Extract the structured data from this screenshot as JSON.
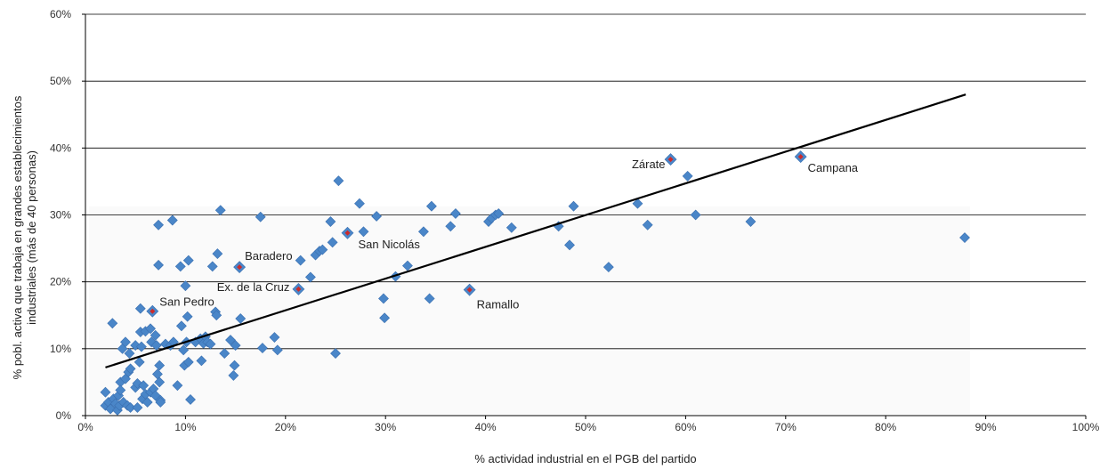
{
  "chart_data": {
    "type": "scatter",
    "xlabel": "% actividad industrial en el PGB del partido",
    "ylabel_line1": "% pobl. activa que trabaja en grandes establecimientos",
    "ylabel_line2": "industriales (más de 40 personas)",
    "xlim": [
      0,
      100
    ],
    "ylim": [
      0,
      60
    ],
    "x_ticks": [
      "0%",
      "10%",
      "20%",
      "30%",
      "40%",
      "50%",
      "60%",
      "70%",
      "80%",
      "90%",
      "100%"
    ],
    "y_ticks": [
      "0%",
      "10%",
      "20%",
      "30%",
      "40%",
      "50%",
      "60%"
    ],
    "grid": "horizontal",
    "colors": {
      "point": "#4a86c8",
      "highlight_core": "#cc2a2a",
      "trend": "#000000",
      "grid": "#000000"
    },
    "trendline": {
      "x": [
        2,
        88
      ],
      "y": [
        7.2,
        48
      ]
    },
    "points": [
      [
        2,
        3.5
      ],
      [
        2,
        1.5
      ],
      [
        2.3,
        2
      ],
      [
        2.5,
        1
      ],
      [
        2.7,
        13.8
      ],
      [
        2.8,
        2.5
      ],
      [
        3,
        1.8
      ],
      [
        3.2,
        0.8
      ],
      [
        3.3,
        3
      ],
      [
        3.4,
        1.5
      ],
      [
        3.5,
        5
      ],
      [
        3.5,
        3.8
      ],
      [
        3.7,
        10
      ],
      [
        3.8,
        2
      ],
      [
        4,
        11
      ],
      [
        4,
        5.5
      ],
      [
        4.2,
        1.5
      ],
      [
        4.3,
        6.5
      ],
      [
        4.4,
        9.3
      ],
      [
        4.5,
        7
      ],
      [
        4.5,
        1.2
      ],
      [
        5,
        4.2
      ],
      [
        5,
        10.5
      ],
      [
        5.2,
        4.8
      ],
      [
        5.2,
        1.2
      ],
      [
        5.4,
        8
      ],
      [
        5.5,
        16
      ],
      [
        5.5,
        12.5
      ],
      [
        5.6,
        10.3
      ],
      [
        5.7,
        2.5
      ],
      [
        5.8,
        4.5
      ],
      [
        6,
        12.6
      ],
      [
        6,
        3.2
      ],
      [
        6.2,
        2
      ],
      [
        6.5,
        13
      ],
      [
        6.5,
        3.5
      ],
      [
        6.6,
        11
      ],
      [
        6.8,
        4
      ],
      [
        7,
        3
      ],
      [
        7,
        12
      ],
      [
        7.1,
        10.5
      ],
      [
        7.2,
        6.2
      ],
      [
        7.3,
        28.5
      ],
      [
        7.3,
        22.5
      ],
      [
        7.4,
        7.5
      ],
      [
        7.4,
        5
      ],
      [
        7.5,
        2.3
      ],
      [
        7.5,
        2
      ],
      [
        8,
        10.7
      ],
      [
        8.5,
        10.5
      ],
      [
        8.7,
        29.2
      ],
      [
        8.8,
        11
      ],
      [
        9.2,
        4.5
      ],
      [
        9.5,
        22.3
      ],
      [
        9.6,
        13.4
      ],
      [
        9.8,
        9.8
      ],
      [
        9.9,
        7.5
      ],
      [
        10,
        19.4
      ],
      [
        10.1,
        11
      ],
      [
        10.2,
        14.8
      ],
      [
        10.3,
        8
      ],
      [
        10.3,
        23.2
      ],
      [
        10.5,
        2.4
      ],
      [
        11,
        11
      ],
      [
        11.5,
        11.5
      ],
      [
        11.6,
        8.2
      ],
      [
        11.8,
        10.8
      ],
      [
        12,
        11.8
      ],
      [
        12.2,
        11
      ],
      [
        12.5,
        10.7
      ],
      [
        12.7,
        22.3
      ],
      [
        13,
        15.5
      ],
      [
        13.1,
        15
      ],
      [
        13.2,
        24.2
      ],
      [
        13.5,
        30.7
      ],
      [
        13.9,
        9.3
      ],
      [
        14.5,
        11.3
      ],
      [
        14.8,
        6
      ],
      [
        14.9,
        7.5
      ],
      [
        15,
        10.5
      ],
      [
        15.5,
        14.5
      ],
      [
        17.5,
        29.7
      ],
      [
        17.7,
        10.1
      ],
      [
        18.9,
        11.7
      ],
      [
        19.2,
        9.8
      ],
      [
        21.5,
        23.2
      ],
      [
        22.5,
        20.7
      ],
      [
        23,
        24
      ],
      [
        23.4,
        24.6
      ],
      [
        23.7,
        24.8
      ],
      [
        24.5,
        29
      ],
      [
        24.7,
        25.9
      ],
      [
        25,
        9.3
      ],
      [
        25.3,
        35.1
      ],
      [
        27.4,
        31.7
      ],
      [
        27.8,
        27.5
      ],
      [
        29.1,
        29.8
      ],
      [
        29.8,
        17.5
      ],
      [
        29.9,
        14.6
      ],
      [
        31,
        20.8
      ],
      [
        32.2,
        22.4
      ],
      [
        33.8,
        27.5
      ],
      [
        34.4,
        17.5
      ],
      [
        34.6,
        31.3
      ],
      [
        36.5,
        28.3
      ],
      [
        37,
        30.2
      ],
      [
        40.3,
        29
      ],
      [
        40.6,
        29.5
      ],
      [
        41,
        30
      ],
      [
        41.3,
        30.2
      ],
      [
        42.6,
        28.1
      ],
      [
        47.3,
        28.3
      ],
      [
        48.4,
        25.5
      ],
      [
        48.8,
        31.3
      ],
      [
        52.3,
        22.2
      ],
      [
        55.2,
        31.7
      ],
      [
        56.2,
        28.5
      ],
      [
        60.2,
        35.8
      ],
      [
        61,
        30
      ],
      [
        66.5,
        29
      ],
      [
        87.9,
        26.6
      ]
    ],
    "highlighted": [
      {
        "name": "Zárate",
        "x": 58.5,
        "y": 38.3
      },
      {
        "name": "Campana",
        "x": 71.5,
        "y": 38.7
      },
      {
        "name": "San Nicolás",
        "x": 26.2,
        "y": 27.3
      },
      {
        "name": "Baradero",
        "x": 15.4,
        "y": 22.2
      },
      {
        "name": "Ramallo",
        "x": 38.4,
        "y": 18.8
      },
      {
        "name": "Ex. de la Cruz",
        "x": 21.3,
        "y": 18.9
      },
      {
        "name": "San Pedro",
        "x": 6.7,
        "y": 15.6
      }
    ]
  }
}
